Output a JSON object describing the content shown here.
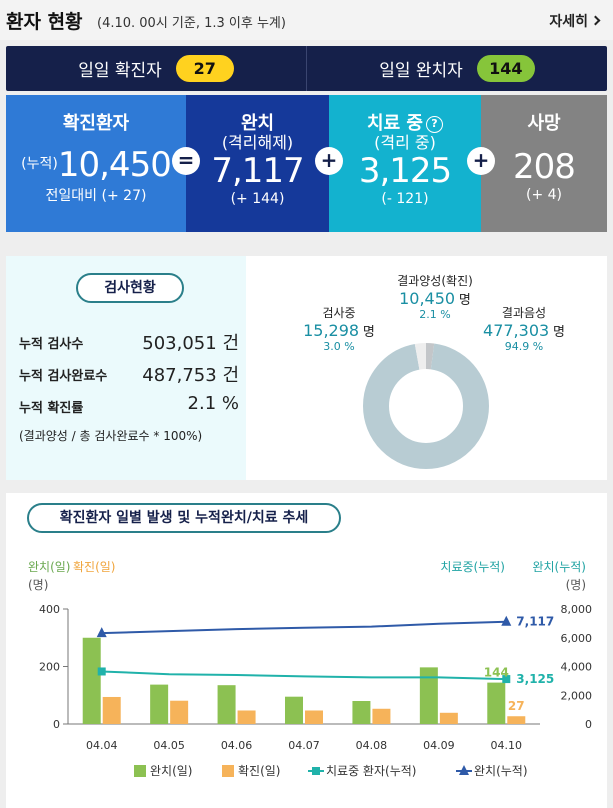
{
  "header": {
    "title": "환자 현황",
    "subtitle": "(4.10. 00시 기준, 1.3 이후 누계)",
    "more_label": "자세히"
  },
  "daily": {
    "confirmed_label": "일일 확진자",
    "confirmed_value": "27",
    "released_label": "일일 완치자",
    "released_value": "144"
  },
  "summary": {
    "confirmed": {
      "label": "확진환자",
      "prefix": "(누적)",
      "value": "10,450",
      "change": "전일대비 (+ 27)"
    },
    "released": {
      "label": "완치",
      "label2": "(격리해제)",
      "value": "7,117",
      "change": "(+ 144)"
    },
    "treatment": {
      "label": "치료 중",
      "help": "?",
      "label2": "(격리 중)",
      "value": "3,125",
      "change": "(- 121)"
    },
    "deaths": {
      "label": "사망",
      "value": "208",
      "change": "(+ 4)"
    },
    "op_equals": "=",
    "op_plus1": "+",
    "op_plus2": "+"
  },
  "tests": {
    "title": "검사현황",
    "rows": [
      {
        "label": "누적 검사수",
        "value": "503,051 건"
      },
      {
        "label": "누적 검사완료수",
        "value": "487,753 건"
      },
      {
        "label": "누적 확진률",
        "value": "2.1 %"
      }
    ],
    "note": "(결과양성 / 총 검사완료수 * 100%)",
    "donut": [
      {
        "label": "결과양성(확진)",
        "value": "10,450",
        "unit": "명",
        "pct": "2.1 %",
        "share": 2.1,
        "color": "#c3c6c9"
      },
      {
        "label": "결과음성",
        "value": "477,303",
        "unit": "명",
        "pct": "94.9 %",
        "share": 94.9,
        "color": "#b8ccd3"
      },
      {
        "label": "검사중",
        "value": "15,298",
        "unit": "명",
        "pct": "3.0 %",
        "share": 3.0,
        "color": "#eeeeee"
      }
    ]
  },
  "trend": {
    "title": "확진환자 일별 발생 및 누적완치/치료 추세"
  },
  "chart_data": {
    "type": "bar",
    "title": "확진환자 일별 발생 및 누적완치/치료 추세",
    "categories": [
      "04.04",
      "04.05",
      "04.06",
      "04.07",
      "04.08",
      "04.09",
      "04.10"
    ],
    "y_left_label_a": "완치(일)",
    "y_left_label_b": "확진(일)",
    "y_left_unit": "(명)",
    "y_right_label_a": "치료중(누적)",
    "y_right_label_b": "완치(누적)",
    "y_right_unit": "(명)",
    "ylim_left": [
      0,
      400
    ],
    "yticks_left": [
      "0",
      "200",
      "400"
    ],
    "ylim_right": [
      0,
      8000
    ],
    "yticks_right": [
      "0",
      "2,000",
      "4,000",
      "6,000",
      "8,000"
    ],
    "series": [
      {
        "name": "완치(일)",
        "type": "bar",
        "axis": "left",
        "color": "#8cc152",
        "values": [
          300,
          137,
          135,
          95,
          80,
          197,
          144
        ]
      },
      {
        "name": "확진(일)",
        "type": "bar",
        "axis": "left",
        "color": "#f6b35a",
        "values": [
          94,
          81,
          47,
          47,
          53,
          39,
          27
        ]
      },
      {
        "name": "치료중 환자(누적)",
        "type": "line",
        "axis": "right",
        "color": "#20b2aa",
        "values": [
          3654,
          3462,
          3408,
          3310,
          3243,
          3246,
          3125
        ]
      },
      {
        "name": "완치(누적)",
        "type": "line",
        "axis": "right",
        "color": "#2f5aa8",
        "values": [
          6324,
          6463,
          6598,
          6694,
          6776,
          6973,
          7117
        ]
      }
    ],
    "annotations": [
      {
        "series": "완치(일)",
        "index": 6,
        "text": "144"
      },
      {
        "series": "확진(일)",
        "index": 6,
        "text": "27"
      },
      {
        "series": "치료중 환자(누적)",
        "index": 6,
        "text": "3,125"
      },
      {
        "series": "완치(누적)",
        "index": 6,
        "text": "7,117"
      }
    ],
    "legend_position": "bottom",
    "grid": false
  }
}
